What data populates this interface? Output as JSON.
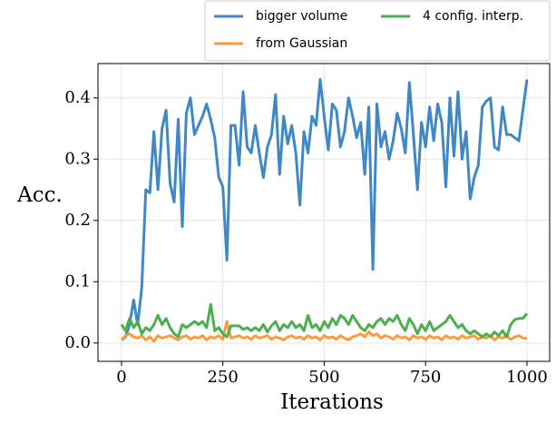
{
  "chart_data": {
    "type": "line",
    "xlabel": "Iterations",
    "ylabel": "Acc.",
    "x": [
      0,
      10,
      20,
      30,
      40,
      50,
      60,
      70,
      80,
      90,
      100,
      110,
      120,
      130,
      140,
      150,
      160,
      170,
      180,
      190,
      200,
      210,
      220,
      230,
      240,
      250,
      260,
      270,
      280,
      290,
      300,
      310,
      320,
      330,
      340,
      350,
      360,
      370,
      380,
      390,
      400,
      410,
      420,
      430,
      440,
      450,
      460,
      470,
      480,
      490,
      500,
      510,
      520,
      530,
      540,
      550,
      560,
      570,
      580,
      590,
      600,
      610,
      620,
      630,
      640,
      650,
      660,
      670,
      680,
      690,
      700,
      710,
      720,
      730,
      740,
      750,
      760,
      770,
      780,
      790,
      800,
      810,
      820,
      830,
      840,
      850,
      860,
      870,
      880,
      890,
      900,
      910,
      920,
      930,
      940,
      950,
      960,
      970,
      980,
      990,
      1000
    ],
    "series": [
      {
        "name": "bigger volume",
        "color": "#3f88c5",
        "values": [
          0.005,
          0.01,
          0.03,
          0.07,
          0.03,
          0.09,
          0.25,
          0.245,
          0.345,
          0.25,
          0.35,
          0.38,
          0.26,
          0.23,
          0.365,
          0.19,
          0.375,
          0.4,
          0.34,
          0.355,
          0.37,
          0.39,
          0.365,
          0.335,
          0.27,
          0.255,
          0.135,
          0.355,
          0.355,
          0.29,
          0.41,
          0.32,
          0.31,
          0.355,
          0.31,
          0.27,
          0.32,
          0.34,
          0.405,
          0.275,
          0.37,
          0.325,
          0.355,
          0.31,
          0.225,
          0.345,
          0.31,
          0.37,
          0.355,
          0.43,
          0.37,
          0.315,
          0.39,
          0.38,
          0.32,
          0.345,
          0.4,
          0.37,
          0.335,
          0.36,
          0.275,
          0.385,
          0.12,
          0.39,
          0.32,
          0.345,
          0.3,
          0.33,
          0.375,
          0.35,
          0.31,
          0.425,
          0.34,
          0.25,
          0.36,
          0.32,
          0.385,
          0.33,
          0.39,
          0.36,
          0.255,
          0.4,
          0.305,
          0.41,
          0.3,
          0.345,
          0.235,
          0.27,
          0.29,
          0.385,
          0.395,
          0.4,
          0.32,
          0.315,
          0.385,
          0.34,
          0.34,
          0.335,
          0.33,
          0.38,
          0.43
        ]
      },
      {
        "name": "from Gaussian",
        "color": "#ff9a3c",
        "values": [
          0.005,
          0.012,
          0.015,
          0.01,
          0.008,
          0.012,
          0.005,
          0.01,
          0.003,
          0.012,
          0.008,
          0.01,
          0.012,
          0.008,
          0.005,
          0.01,
          0.012,
          0.006,
          0.01,
          0.008,
          0.012,
          0.005,
          0.01,
          0.008,
          0.012,
          0.006,
          0.035,
          0.008,
          0.01,
          0.012,
          0.008,
          0.01,
          0.006,
          0.012,
          0.008,
          0.01,
          0.012,
          0.006,
          0.01,
          0.008,
          0.005,
          0.01,
          0.012,
          0.008,
          0.01,
          0.006,
          0.012,
          0.008,
          0.01,
          0.005,
          0.012,
          0.008,
          0.01,
          0.006,
          0.012,
          0.008,
          0.005,
          0.01,
          0.012,
          0.015,
          0.01,
          0.018,
          0.012,
          0.015,
          0.008,
          0.012,
          0.01,
          0.006,
          0.012,
          0.008,
          0.01,
          0.005,
          0.012,
          0.008,
          0.01,
          0.006,
          0.012,
          0.008,
          0.01,
          0.005,
          0.012,
          0.008,
          0.01,
          0.006,
          0.012,
          0.008,
          0.01,
          0.012,
          0.006,
          0.01,
          0.008,
          0.012,
          0.005,
          0.01,
          0.008,
          0.012,
          0.006,
          0.01,
          0.012,
          0.008,
          0.007
        ]
      },
      {
        "name": "4 config. interp.",
        "color": "#4caf50",
        "values": [
          0.03,
          0.02,
          0.04,
          0.025,
          0.035,
          0.015,
          0.025,
          0.02,
          0.03,
          0.045,
          0.03,
          0.04,
          0.025,
          0.015,
          0.01,
          0.03,
          0.025,
          0.03,
          0.035,
          0.03,
          0.035,
          0.025,
          0.063,
          0.02,
          0.025,
          0.015,
          0.01,
          0.028,
          0.028,
          0.028,
          0.022,
          0.025,
          0.02,
          0.025,
          0.02,
          0.03,
          0.018,
          0.028,
          0.035,
          0.02,
          0.03,
          0.025,
          0.035,
          0.025,
          0.03,
          0.02,
          0.045,
          0.025,
          0.03,
          0.02,
          0.035,
          0.025,
          0.04,
          0.03,
          0.045,
          0.04,
          0.03,
          0.045,
          0.035,
          0.025,
          0.02,
          0.03,
          0.025,
          0.035,
          0.04,
          0.03,
          0.04,
          0.035,
          0.045,
          0.03,
          0.02,
          0.04,
          0.03,
          0.015,
          0.03,
          0.02,
          0.035,
          0.02,
          0.025,
          0.03,
          0.035,
          0.045,
          0.035,
          0.025,
          0.03,
          0.02,
          0.015,
          0.02,
          0.015,
          0.01,
          0.015,
          0.01,
          0.018,
          0.012,
          0.02,
          0.01,
          0.03,
          0.038,
          0.04,
          0.04,
          0.048
        ]
      }
    ],
    "xlim": [
      -58,
      1056
    ],
    "ylim": [
      -0.03,
      0.456
    ],
    "xticks": [
      0,
      250,
      500,
      750,
      1000
    ],
    "yticks": [
      {
        "value": 0,
        "label": "0.0"
      },
      0.1,
      0.2,
      0.3,
      0.4
    ],
    "grid": true,
    "legend": "top-right-outside"
  }
}
